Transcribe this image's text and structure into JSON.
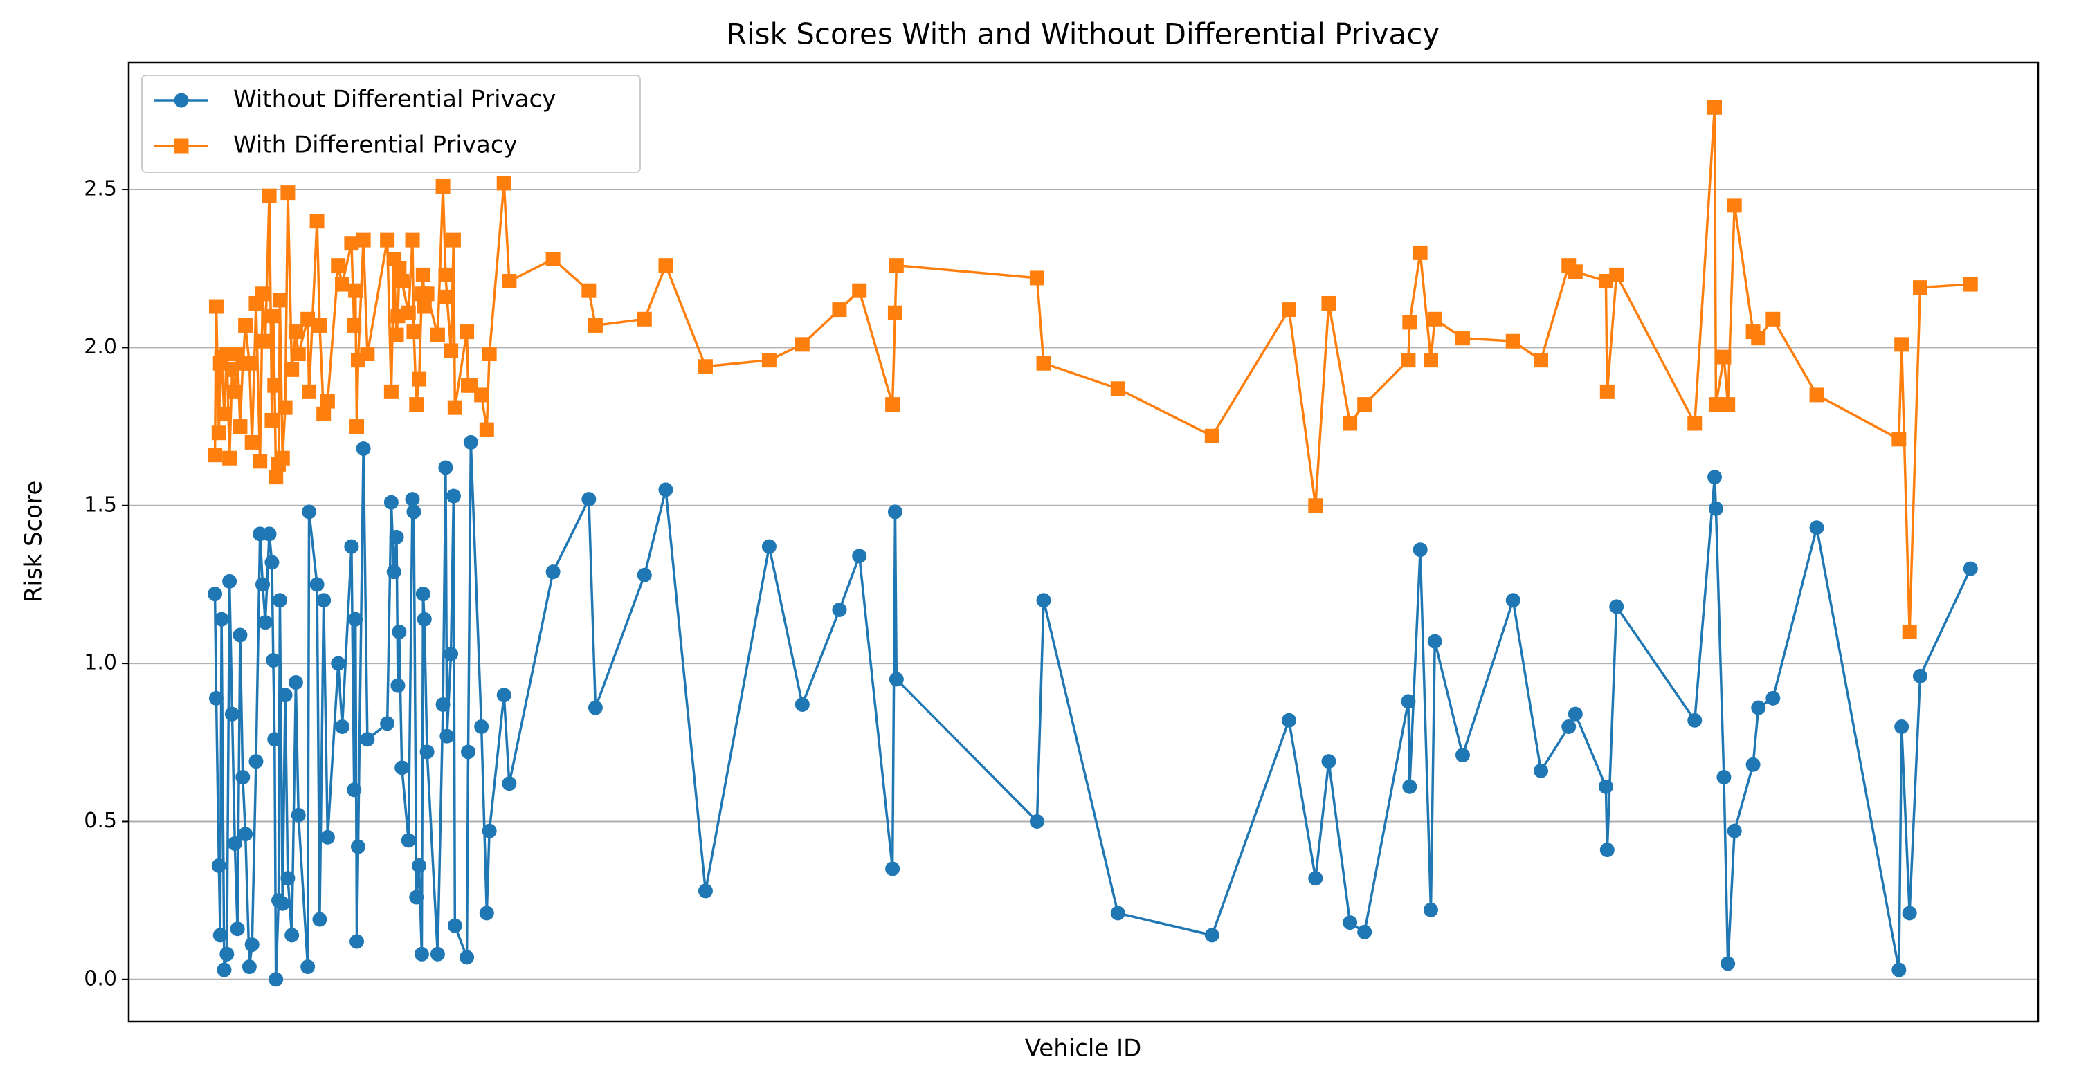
{
  "chart_data": {
    "type": "line",
    "title": "Risk Scores With and Without Differential Privacy",
    "xlabel": "Vehicle ID",
    "ylabel": "Risk Score",
    "xlim": [
      0,
      1440
    ],
    "ylim": [
      -0.134,
      2.903
    ],
    "yticks": [
      {
        "value": 0,
        "label": "0.0"
      },
      0.5,
      {
        "value": 1,
        "label": "1.0"
      },
      1.5,
      {
        "value": 2,
        "label": "2.0"
      },
      2.5
    ],
    "grid": "y",
    "legend": "upper left",
    "x": [
      65,
      66,
      68,
      69,
      70,
      72,
      74,
      76,
      78,
      80,
      82,
      84,
      86,
      88,
      91,
      93,
      96,
      99,
      101,
      103,
      106,
      108,
      109,
      110,
      111,
      113,
      114,
      116,
      118,
      120,
      123,
      126,
      128,
      135,
      136,
      142,
      144,
      147,
      150,
      158,
      161,
      168,
      170,
      171,
      172,
      173,
      177,
      180,
      195,
      198,
      200,
      202,
      203,
      204,
      206,
      211,
      214,
      215,
      217,
      219,
      221,
      222,
      223,
      225,
      233,
      237,
      239,
      240,
      243,
      245,
      246,
      255,
      256,
      258,
      266,
      270,
      272,
      283,
      287,
      320,
      347,
      352,
      389,
      405,
      435,
      483,
      508,
      536,
      551,
      576,
      578,
      579,
      685,
      690,
      746,
      817,
      875,
      895,
      905,
      921,
      932,
      965,
      966,
      974,
      982,
      985,
      1006,
      1044,
      1065,
      1086,
      1091,
      1114,
      1115,
      1122,
      1181,
      1196,
      1197,
      1203,
      1206,
      1211,
      1225,
      1229,
      1240,
      1273,
      1335,
      1337,
      1343,
      1351,
      1389
    ],
    "series": [
      {
        "name": "Without Differential Privacy",
        "color": "#1f77b4",
        "marker": "o",
        "values": [
          1.22,
          0.89,
          0.36,
          0.14,
          1.14,
          0.03,
          0.08,
          1.26,
          0.84,
          0.43,
          0.16,
          1.09,
          0.64,
          0.46,
          0.04,
          0.11,
          0.69,
          1.41,
          1.25,
          1.13,
          1.41,
          1.32,
          1.01,
          0.76,
          0.0,
          0.25,
          1.2,
          0.24,
          0.9,
          0.32,
          0.14,
          0.94,
          0.52,
          0.04,
          1.48,
          1.25,
          0.19,
          1.2,
          0.45,
          1.0,
          0.8,
          1.37,
          0.6,
          1.14,
          0.12,
          0.42,
          1.68,
          0.76,
          0.81,
          1.51,
          1.29,
          1.4,
          0.93,
          1.1,
          0.67,
          0.44,
          1.52,
          1.48,
          0.26,
          0.36,
          0.08,
          1.22,
          1.14,
          0.72,
          0.08,
          0.87,
          1.62,
          0.77,
          1.03,
          1.53,
          0.17,
          0.07,
          0.72,
          1.7,
          0.8,
          0.21,
          0.47,
          0.9,
          0.62,
          1.29,
          1.52,
          0.86,
          1.28,
          1.55,
          0.28,
          1.37,
          0.87,
          1.17,
          1.34,
          0.35,
          1.48,
          0.95,
          0.5,
          1.2,
          0.21,
          0.14,
          0.82,
          0.32,
          0.69,
          0.18,
          0.15,
          0.88,
          0.61,
          1.36,
          0.22,
          1.07,
          0.71,
          1.2,
          0.66,
          0.8,
          0.84,
          0.61,
          0.41,
          1.18,
          0.82,
          1.59,
          1.49,
          0.64,
          0.05,
          0.47,
          0.68,
          0.86,
          0.89,
          1.43,
          0.03,
          0.8,
          0.21,
          0.96,
          1.3
        ]
      },
      {
        "name": "With Differential Privacy",
        "color": "#ff7f0e",
        "marker": "s",
        "values": [
          1.66,
          2.13,
          1.73,
          1.95,
          1.97,
          1.79,
          1.98,
          1.65,
          1.93,
          1.86,
          1.98,
          1.75,
          1.95,
          2.07,
          1.95,
          1.7,
          2.14,
          1.64,
          2.17,
          2.02,
          2.48,
          1.77,
          2.1,
          1.88,
          1.59,
          1.63,
          2.15,
          1.65,
          1.81,
          2.49,
          1.93,
          2.05,
          1.98,
          2.09,
          1.86,
          2.4,
          2.07,
          1.79,
          1.83,
          2.26,
          2.2,
          2.33,
          2.07,
          2.18,
          1.75,
          1.96,
          2.34,
          1.98,
          2.34,
          1.86,
          2.28,
          2.04,
          2.1,
          2.25,
          2.21,
          2.11,
          2.34,
          2.05,
          1.82,
          1.9,
          2.17,
          2.23,
          2.13,
          2.17,
          2.04,
          2.51,
          2.23,
          2.16,
          1.99,
          2.34,
          1.81,
          2.05,
          1.88,
          1.88,
          1.85,
          1.74,
          1.98,
          2.52,
          2.21,
          2.28,
          2.18,
          2.07,
          2.09,
          2.26,
          1.94,
          1.96,
          2.01,
          2.12,
          2.18,
          1.82,
          2.11,
          2.26,
          2.22,
          1.95,
          1.87,
          1.72,
          2.12,
          1.5,
          2.14,
          1.76,
          1.82,
          1.96,
          2.08,
          2.3,
          1.96,
          2.09,
          2.03,
          2.02,
          1.96,
          2.26,
          2.24,
          2.21,
          1.86,
          2.23,
          1.76,
          2.76,
          1.82,
          1.97,
          1.82,
          2.45,
          2.05,
          2.03,
          2.09,
          1.85,
          1.71,
          2.01,
          1.1,
          2.19,
          2.2
        ]
      }
    ]
  }
}
